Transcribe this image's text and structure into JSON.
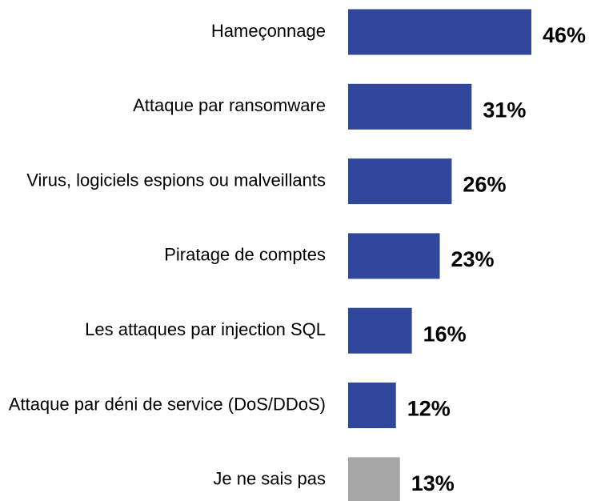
{
  "chart_data": {
    "type": "bar",
    "orientation": "horizontal",
    "categories": [
      "Hameçonnage",
      "Attaque par ransomware",
      "Virus, logiciels espions ou malveillants",
      "Piratage de comptes",
      "Les attaques par injection SQL",
      "Attaque par déni de service (DoS/DDoS)",
      "Je ne sais pas"
    ],
    "values": [
      46,
      31,
      26,
      23,
      16,
      12,
      13
    ],
    "value_labels": [
      "46%",
      "31%",
      "26%",
      "23%",
      "16%",
      "12%",
      "13%"
    ],
    "colors": [
      "#30479b",
      "#30479b",
      "#30479b",
      "#30479b",
      "#30479b",
      "#30479b",
      "#a6a6a6"
    ]
  }
}
